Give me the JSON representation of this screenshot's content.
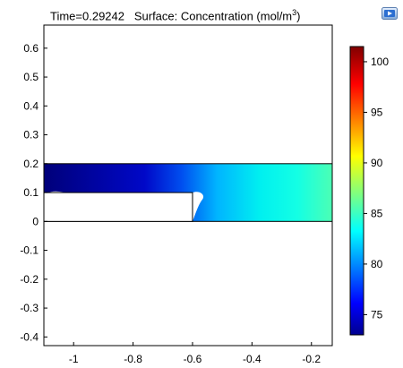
{
  "title": {
    "time_text": "Time=0.29242",
    "surface_text": "Surface: Concentration (mol/m",
    "unit_exponent": "3",
    "unit_close": ")"
  },
  "chart_data": {
    "type": "heatmap",
    "title": "Time=0.29242   Surface: Concentration (mol/m3)",
    "xlim": [
      -1.1,
      -0.13
    ],
    "ylim": [
      -0.43,
      0.68
    ],
    "x_ticks": [
      "-1",
      "-0.8",
      "-0.6",
      "-0.4",
      "-0.2"
    ],
    "x_tick_values": [
      -1,
      -0.8,
      -0.6,
      -0.4,
      -0.2
    ],
    "y_ticks": [
      "0.6",
      "0.5",
      "0.4",
      "0.3",
      "0.2",
      "0.1",
      "0",
      "-0.1",
      "-0.2",
      "-0.3",
      "-0.4"
    ],
    "y_tick_values": [
      0.6,
      0.5,
      0.4,
      0.3,
      0.2,
      0.1,
      0,
      -0.1,
      -0.2,
      -0.3,
      -0.4
    ],
    "domain": {
      "x": [
        -1.1,
        -0.13
      ],
      "y": [
        0,
        0.2
      ]
    },
    "obstacle": {
      "x": [
        -1.1,
        -0.6
      ],
      "y": [
        0,
        0.1
      ]
    },
    "concentration_profile": {
      "x": [
        -1.1,
        -0.8,
        -0.6,
        -0.5,
        -0.4,
        -0.3,
        -0.13
      ],
      "value": [
        73.5,
        74,
        79,
        82,
        84.5,
        85.5,
        87
      ]
    },
    "colorbar": {
      "min": 73,
      "max": 101.5,
      "ticks": [
        "100",
        "95",
        "90",
        "85",
        "80",
        "75"
      ],
      "tick_values": [
        100,
        95,
        90,
        85,
        80,
        75
      ],
      "colormap": "jet"
    }
  },
  "icons": {
    "play": "play-animation-icon"
  }
}
